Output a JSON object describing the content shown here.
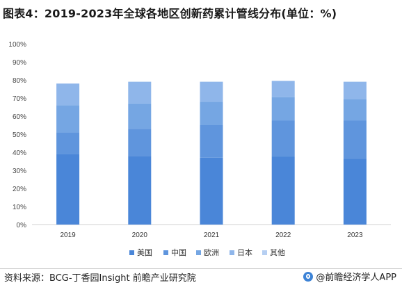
{
  "title": "图表4：2019-2023年全球各地区创新药累计管线分布(单位：%)",
  "source": "资料来源：BCG-丁香园Insight 前瞻产业研究院",
  "brand": "@前瞻经济学人APP",
  "colors": {
    "美国": "#4a86d8",
    "中国": "#5f95dd",
    "欧洲": "#75a6e3",
    "日本": "#8fb6ea",
    "其他": "#b6cff2"
  },
  "chart_data": {
    "type": "bar",
    "stacked": true,
    "categories": [
      "2019",
      "2020",
      "2021",
      "2022",
      "2023"
    ],
    "series": [
      {
        "name": "美国",
        "values": [
          39,
          38,
          37,
          37.5,
          36.5
        ]
      },
      {
        "name": "中国",
        "values": [
          12,
          15,
          18,
          20,
          21
        ]
      },
      {
        "name": "欧洲",
        "values": [
          15,
          14,
          13,
          13,
          12
        ]
      },
      {
        "name": "日本",
        "values": [
          12,
          12,
          11,
          9,
          9.5
        ]
      },
      {
        "name": "其他",
        "values": [
          0,
          0,
          0,
          0,
          0
        ]
      }
    ],
    "ylim": [
      0,
      100
    ],
    "yticks": [
      "0%",
      "10%",
      "20%",
      "30%",
      "40%",
      "50%",
      "60%",
      "70%",
      "80%",
      "90%",
      "100%"
    ],
    "legend_position": "bottom",
    "grid": false
  }
}
